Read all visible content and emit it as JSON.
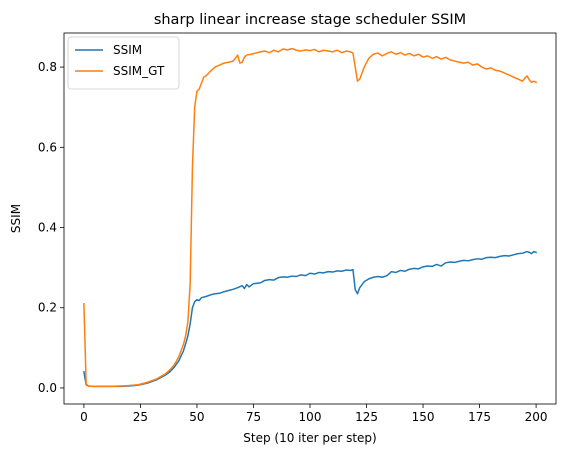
{
  "chart_data": {
    "type": "line",
    "title": "sharp linear increase stage scheduler SSIM",
    "xlabel": "Step (10 iter per step)",
    "ylabel": "SSIM",
    "xlim": [
      -8.8,
      208.8
    ],
    "ylim": [
      -0.04,
      0.885
    ],
    "xticks": [
      0,
      25,
      50,
      75,
      100,
      125,
      150,
      175,
      200
    ],
    "yticks": [
      0.0,
      0.2,
      0.4,
      0.6,
      0.8
    ],
    "ytick_labels": [
      "0.0",
      "0.2",
      "0.4",
      "0.6",
      "0.8"
    ],
    "grid": false,
    "legend_position": "top-left",
    "series": [
      {
        "name": "SSIM",
        "color": "#1f77b4",
        "points": [
          [
            0,
            0.04
          ],
          [
            1,
            0.008
          ],
          [
            2,
            0.005
          ],
          [
            4,
            0.004
          ],
          [
            8,
            0.004
          ],
          [
            12,
            0.004
          ],
          [
            16,
            0.004
          ],
          [
            20,
            0.005
          ],
          [
            24,
            0.007
          ],
          [
            28,
            0.012
          ],
          [
            32,
            0.02
          ],
          [
            36,
            0.032
          ],
          [
            38,
            0.04
          ],
          [
            40,
            0.052
          ],
          [
            42,
            0.068
          ],
          [
            44,
            0.092
          ],
          [
            45,
            0.11
          ],
          [
            46,
            0.13
          ],
          [
            47,
            0.16
          ],
          [
            48,
            0.2
          ],
          [
            49,
            0.215
          ],
          [
            50,
            0.22
          ],
          [
            51,
            0.218
          ],
          [
            52,
            0.225
          ],
          [
            54,
            0.228
          ],
          [
            56,
            0.232
          ],
          [
            58,
            0.235
          ],
          [
            60,
            0.236
          ],
          [
            62,
            0.24
          ],
          [
            64,
            0.243
          ],
          [
            66,
            0.246
          ],
          [
            68,
            0.25
          ],
          [
            70,
            0.255
          ],
          [
            71,
            0.248
          ],
          [
            72,
            0.258
          ],
          [
            73,
            0.252
          ],
          [
            75,
            0.26
          ],
          [
            78,
            0.262
          ],
          [
            80,
            0.268
          ],
          [
            82,
            0.27
          ],
          [
            84,
            0.269
          ],
          [
            86,
            0.275
          ],
          [
            88,
            0.277
          ],
          [
            90,
            0.276
          ],
          [
            92,
            0.279
          ],
          [
            94,
            0.278
          ],
          [
            96,
            0.282
          ],
          [
            98,
            0.28
          ],
          [
            100,
            0.286
          ],
          [
            102,
            0.284
          ],
          [
            104,
            0.288
          ],
          [
            106,
            0.287
          ],
          [
            108,
            0.29
          ],
          [
            110,
            0.289
          ],
          [
            112,
            0.292
          ],
          [
            114,
            0.291
          ],
          [
            116,
            0.294
          ],
          [
            118,
            0.293
          ],
          [
            119,
            0.295
          ],
          [
            120,
            0.245
          ],
          [
            121,
            0.235
          ],
          [
            122,
            0.25
          ],
          [
            124,
            0.265
          ],
          [
            126,
            0.272
          ],
          [
            128,
            0.276
          ],
          [
            130,
            0.278
          ],
          [
            132,
            0.276
          ],
          [
            134,
            0.28
          ],
          [
            136,
            0.29
          ],
          [
            138,
            0.288
          ],
          [
            140,
            0.293
          ],
          [
            142,
            0.291
          ],
          [
            144,
            0.296
          ],
          [
            146,
            0.298
          ],
          [
            148,
            0.297
          ],
          [
            150,
            0.302
          ],
          [
            152,
            0.304
          ],
          [
            154,
            0.303
          ],
          [
            156,
            0.308
          ],
          [
            158,
            0.304
          ],
          [
            160,
            0.312
          ],
          [
            162,
            0.314
          ],
          [
            164,
            0.313
          ],
          [
            166,
            0.316
          ],
          [
            168,
            0.318
          ],
          [
            170,
            0.317
          ],
          [
            172,
            0.32
          ],
          [
            174,
            0.322
          ],
          [
            176,
            0.321
          ],
          [
            178,
            0.325
          ],
          [
            180,
            0.326
          ],
          [
            182,
            0.325
          ],
          [
            184,
            0.328
          ],
          [
            186,
            0.33
          ],
          [
            188,
            0.329
          ],
          [
            190,
            0.332
          ],
          [
            192,
            0.335
          ],
          [
            194,
            0.336
          ],
          [
            196,
            0.34
          ],
          [
            197,
            0.338
          ],
          [
            198,
            0.335
          ],
          [
            199,
            0.34
          ],
          [
            200,
            0.338
          ]
        ]
      },
      {
        "name": "SSIM_GT",
        "color": "#ff7f0e",
        "points": [
          [
            0,
            0.21
          ],
          [
            1,
            0.01
          ],
          [
            2,
            0.005
          ],
          [
            4,
            0.004
          ],
          [
            8,
            0.004
          ],
          [
            12,
            0.004
          ],
          [
            16,
            0.005
          ],
          [
            20,
            0.006
          ],
          [
            24,
            0.008
          ],
          [
            28,
            0.014
          ],
          [
            32,
            0.022
          ],
          [
            36,
            0.035
          ],
          [
            38,
            0.045
          ],
          [
            40,
            0.058
          ],
          [
            42,
            0.078
          ],
          [
            44,
            0.108
          ],
          [
            45,
            0.13
          ],
          [
            46,
            0.165
          ],
          [
            47,
            0.26
          ],
          [
            48,
            0.55
          ],
          [
            49,
            0.7
          ],
          [
            50,
            0.74
          ],
          [
            51,
            0.745
          ],
          [
            52,
            0.76
          ],
          [
            53,
            0.775
          ],
          [
            54,
            0.778
          ],
          [
            56,
            0.79
          ],
          [
            58,
            0.8
          ],
          [
            60,
            0.805
          ],
          [
            62,
            0.81
          ],
          [
            64,
            0.812
          ],
          [
            66,
            0.815
          ],
          [
            67,
            0.822
          ],
          [
            68,
            0.83
          ],
          [
            69,
            0.81
          ],
          [
            70,
            0.812
          ],
          [
            71,
            0.825
          ],
          [
            72,
            0.83
          ],
          [
            74,
            0.832
          ],
          [
            76,
            0.835
          ],
          [
            78,
            0.838
          ],
          [
            80,
            0.84
          ],
          [
            82,
            0.836
          ],
          [
            84,
            0.842
          ],
          [
            86,
            0.838
          ],
          [
            88,
            0.845
          ],
          [
            90,
            0.843
          ],
          [
            92,
            0.846
          ],
          [
            94,
            0.842
          ],
          [
            96,
            0.84
          ],
          [
            98,
            0.843
          ],
          [
            100,
            0.841
          ],
          [
            102,
            0.844
          ],
          [
            104,
            0.838
          ],
          [
            106,
            0.842
          ],
          [
            108,
            0.84
          ],
          [
            110,
            0.838
          ],
          [
            112,
            0.842
          ],
          [
            114,
            0.836
          ],
          [
            116,
            0.84
          ],
          [
            118,
            0.838
          ],
          [
            119,
            0.835
          ],
          [
            120,
            0.8
          ],
          [
            121,
            0.765
          ],
          [
            122,
            0.77
          ],
          [
            124,
            0.8
          ],
          [
            126,
            0.822
          ],
          [
            128,
            0.832
          ],
          [
            130,
            0.835
          ],
          [
            132,
            0.828
          ],
          [
            134,
            0.834
          ],
          [
            136,
            0.838
          ],
          [
            138,
            0.832
          ],
          [
            140,
            0.836
          ],
          [
            142,
            0.83
          ],
          [
            144,
            0.834
          ],
          [
            146,
            0.828
          ],
          [
            148,
            0.832
          ],
          [
            150,
            0.825
          ],
          [
            152,
            0.828
          ],
          [
            154,
            0.822
          ],
          [
            156,
            0.826
          ],
          [
            158,
            0.82
          ],
          [
            160,
            0.824
          ],
          [
            162,
            0.818
          ],
          [
            164,
            0.815
          ],
          [
            166,
            0.812
          ],
          [
            168,
            0.81
          ],
          [
            170,
            0.812
          ],
          [
            172,
            0.805
          ],
          [
            174,
            0.808
          ],
          [
            176,
            0.8
          ],
          [
            178,
            0.795
          ],
          [
            180,
            0.798
          ],
          [
            182,
            0.792
          ],
          [
            184,
            0.79
          ],
          [
            186,
            0.785
          ],
          [
            188,
            0.78
          ],
          [
            190,
            0.775
          ],
          [
            192,
            0.77
          ],
          [
            194,
            0.765
          ],
          [
            195,
            0.772
          ],
          [
            196,
            0.778
          ],
          [
            197,
            0.768
          ],
          [
            198,
            0.762
          ],
          [
            199,
            0.765
          ],
          [
            200,
            0.762
          ]
        ]
      }
    ]
  }
}
